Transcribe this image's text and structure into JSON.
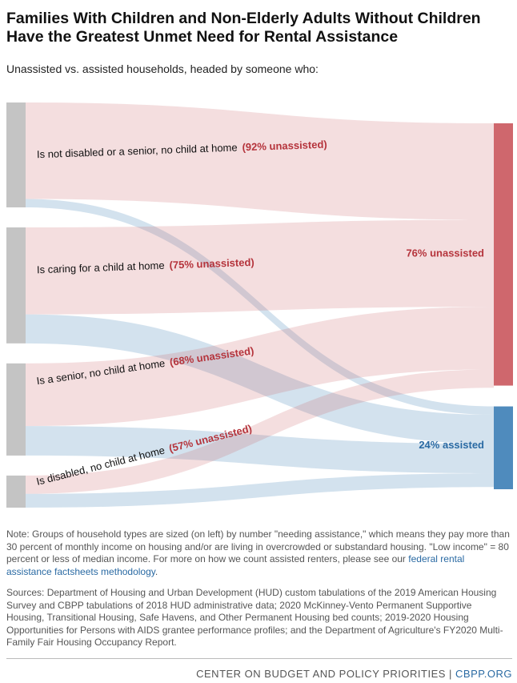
{
  "chart_data": {
    "type": "sankey",
    "title": "Families With Children and Non-Elderly Adults Without Children Have the Greatest Unmet Need for Rental Assistance",
    "subtitle": "Unassisted vs. assisted households, headed by someone who:",
    "categories": [
      "Is not disabled or a senior, no child at home",
      "Is caring for a child at home",
      "Is a senior, no child at home",
      "Is disabled, no child at home"
    ],
    "values": [
      30.4,
      33.6,
      26.7,
      9.3
    ],
    "unassisted_share": [
      92,
      75,
      68,
      57
    ],
    "value_labels": [
      "(92% unassisted)",
      "(75% unassisted)",
      "(68% unassisted)",
      "(57% unassisted)"
    ],
    "source_color": "#c4c4c4",
    "targets": [
      {
        "label": "76% unassisted",
        "value": 76,
        "color": "#cf676d",
        "label_color": "#b5343c"
      },
      {
        "label": "24% assisted",
        "value": 24,
        "color": "#4f8bbd",
        "label_color": "#2a6aa3"
      }
    ]
  },
  "note": "Note: Groups of household types are sized (on left) by number \"needing assistance,\" which means they pay more than 30 percent of monthly income on housing and/or are living in overcrowded or substandard housing. \"Low income\" = 80 percent or less of median income. For more on how we count assisted renters, please see our",
  "note_link": "federal rental assistance factsheets methodology",
  "note_end": ".",
  "sources": "Sources: Department of Housing and Urban Development (HUD) custom tabulations of the 2019 American Housing Survey and CBPP tabulations of 2018 HUD administrative data; 2020 McKinney-Vento Permanent Supportive Housing, Transitional Housing, Safe Havens, and Other Permanent Housing bed counts; 2019-2020 Housing Opportunities for Persons with AIDS grantee performance profiles; and the Department of Agriculture's FY2020 Multi-Family Fair Housing Occupancy Report.",
  "footer": {
    "org": "CENTER ON BUDGET AND POLICY PRIORITIES |",
    "url": "CBPP.ORG"
  }
}
